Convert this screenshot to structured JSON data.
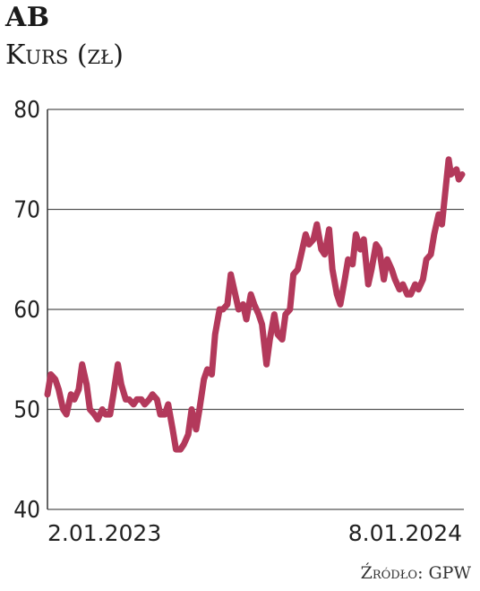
{
  "chart_data": {
    "type": "line",
    "title": "AB",
    "subtitle": "Kurs (zł)",
    "source": "Źródło: GPW",
    "ylim": [
      40,
      80
    ],
    "yticks": [
      40,
      50,
      60,
      70,
      80
    ],
    "xtick_labels": [
      "2.01.2023",
      "8.01.2024"
    ],
    "x_range": [
      "2023-01-02",
      "2024-01-08"
    ],
    "grid": true,
    "line_color": "#b3395b",
    "series": [
      {
        "x": [
          "2023-01-02",
          "2023-01-05",
          "2023-01-09",
          "2023-01-12",
          "2023-01-16",
          "2023-01-19",
          "2023-01-23",
          "2023-01-26",
          "2023-01-30",
          "2023-02-02",
          "2023-02-06",
          "2023-02-09",
          "2023-02-13",
          "2023-02-16",
          "2023-02-20",
          "2023-02-23",
          "2023-02-27",
          "2023-03-02",
          "2023-03-06",
          "2023-03-09",
          "2023-03-13",
          "2023-03-16",
          "2023-03-20",
          "2023-03-23",
          "2023-03-27",
          "2023-03-30",
          "2023-04-03",
          "2023-04-06",
          "2023-04-10",
          "2023-04-13",
          "2023-04-17",
          "2023-04-20",
          "2023-04-24",
          "2023-04-27",
          "2023-05-01",
          "2023-05-04",
          "2023-05-08",
          "2023-05-11",
          "2023-05-15",
          "2023-05-18",
          "2023-05-22",
          "2023-05-25",
          "2023-05-29",
          "2023-06-01",
          "2023-06-05",
          "2023-06-08",
          "2023-06-12",
          "2023-06-15",
          "2023-06-19",
          "2023-06-22",
          "2023-06-26",
          "2023-06-29",
          "2023-07-03",
          "2023-07-06",
          "2023-07-10",
          "2023-07-13",
          "2023-07-17",
          "2023-07-20",
          "2023-07-24",
          "2023-07-27",
          "2023-07-31",
          "2023-08-03",
          "2023-08-07",
          "2023-08-10",
          "2023-08-14",
          "2023-08-17",
          "2023-08-21",
          "2023-08-24",
          "2023-08-28",
          "2023-08-31",
          "2023-09-04",
          "2023-09-07",
          "2023-09-11",
          "2023-09-14",
          "2023-09-18",
          "2023-09-21",
          "2023-09-25",
          "2023-09-28",
          "2023-10-02",
          "2023-10-05",
          "2023-10-09",
          "2023-10-12",
          "2023-10-16",
          "2023-10-19",
          "2023-10-23",
          "2023-10-26",
          "2023-10-30",
          "2023-11-02",
          "2023-11-06",
          "2023-11-09",
          "2023-11-13",
          "2023-11-16",
          "2023-11-20",
          "2023-11-23",
          "2023-11-27",
          "2023-11-30",
          "2023-12-04",
          "2023-12-07",
          "2023-12-11",
          "2023-12-14",
          "2023-12-18",
          "2023-12-21",
          "2023-12-27",
          "2023-12-29",
          "2024-01-03",
          "2024-01-05",
          "2024-01-08"
        ],
        "y": [
          51.5,
          53.5,
          53.0,
          52.0,
          50.0,
          49.5,
          51.5,
          51.0,
          52.0,
          54.5,
          52.5,
          50.0,
          49.5,
          49.0,
          50.0,
          49.5,
          49.5,
          51.5,
          54.5,
          52.5,
          51.0,
          51.0,
          50.5,
          51.0,
          51.0,
          50.5,
          51.0,
          51.5,
          51.0,
          49.5,
          49.5,
          50.5,
          48.0,
          46.0,
          46.0,
          46.5,
          47.5,
          50.0,
          48.0,
          50.0,
          53.0,
          54.0,
          53.5,
          57.5,
          60.0,
          60.0,
          60.5,
          63.5,
          61.5,
          60.0,
          60.5,
          59.0,
          61.5,
          60.5,
          59.5,
          58.5,
          54.5,
          57.0,
          59.5,
          57.5,
          57.0,
          59.5,
          60.0,
          63.5,
          64.0,
          65.5,
          67.5,
          66.5,
          67.0,
          68.5,
          66.0,
          65.5,
          68.0,
          64.0,
          61.5,
          60.5,
          63.0,
          65.0,
          64.5,
          67.5,
          66.0,
          67.0,
          62.5,
          64.0,
          66.5,
          66.0,
          63.0,
          65.0,
          64.0,
          63.0,
          62.0,
          62.5,
          61.5,
          61.5,
          62.5,
          62.0,
          63.0,
          65.0,
          65.5,
          67.5,
          69.5,
          68.5,
          75.0,
          73.5,
          74.0,
          73.0,
          73.5
        ]
      }
    ]
  }
}
